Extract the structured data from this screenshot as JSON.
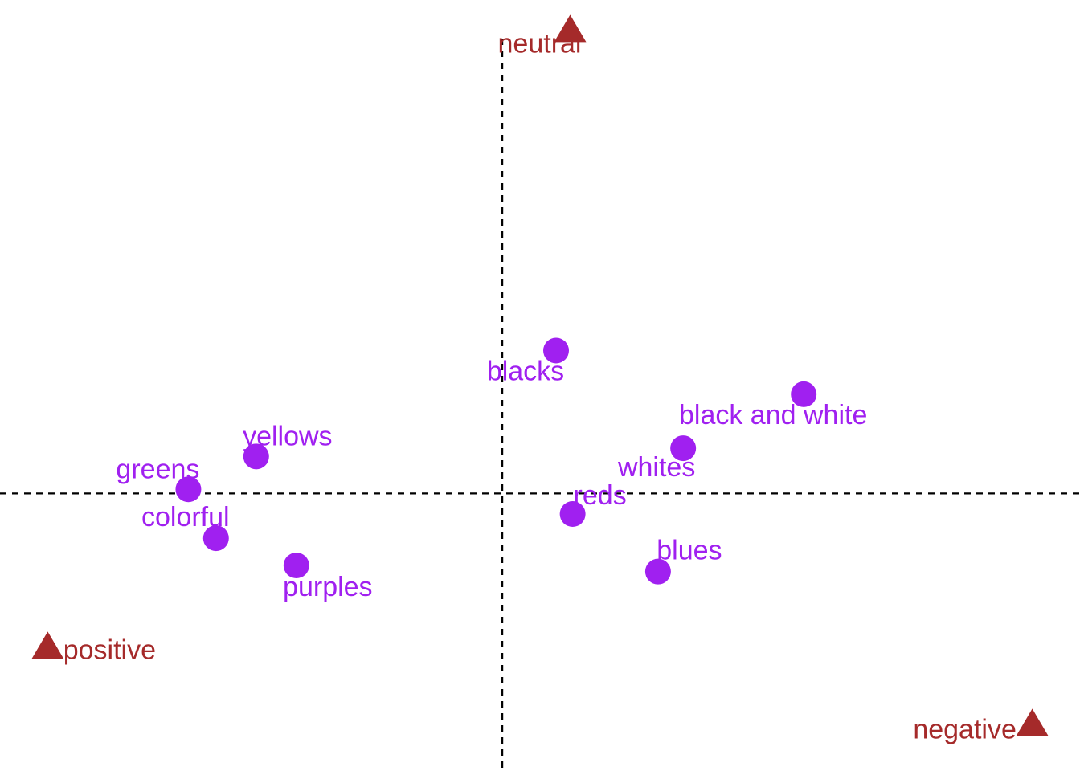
{
  "chart_data": {
    "type": "scatter",
    "title": "",
    "xlabel": "",
    "ylabel": "",
    "grid": false,
    "xlim": [
      -1.0,
      1.15
    ],
    "ylim": [
      -0.54,
      0.96
    ],
    "reference_lines": {
      "x": 0,
      "y": 0
    },
    "colors": {
      "rows": "#a020f0",
      "columns": "#a52a2a",
      "reference": "#000000"
    },
    "series": [
      {
        "marker": "circle",
        "color": "#a020f0",
        "points": [
          {
            "label": "blacks",
            "x": 0.107,
            "y": 0.278
          },
          {
            "label": "black and white",
            "x": 0.6,
            "y": 0.193
          },
          {
            "label": "whites",
            "x": 0.36,
            "y": 0.088
          },
          {
            "label": "yellows",
            "x": -0.49,
            "y": 0.072
          },
          {
            "label": "greens",
            "x": -0.625,
            "y": 0.008
          },
          {
            "label": "colorful",
            "x": -0.57,
            "y": -0.087
          },
          {
            "label": "reds",
            "x": 0.14,
            "y": -0.04
          },
          {
            "label": "blues",
            "x": 0.31,
            "y": -0.152
          },
          {
            "label": "purples",
            "x": -0.41,
            "y": -0.14
          }
        ]
      },
      {
        "marker": "triangle",
        "color": "#a52a2a",
        "points": [
          {
            "label": "neutral",
            "x": 0.135,
            "y": 0.9
          },
          {
            "label": "positive",
            "x": -0.905,
            "y": -0.3
          },
          {
            "label": "negative",
            "x": 1.055,
            "y": -0.45
          }
        ]
      }
    ]
  }
}
